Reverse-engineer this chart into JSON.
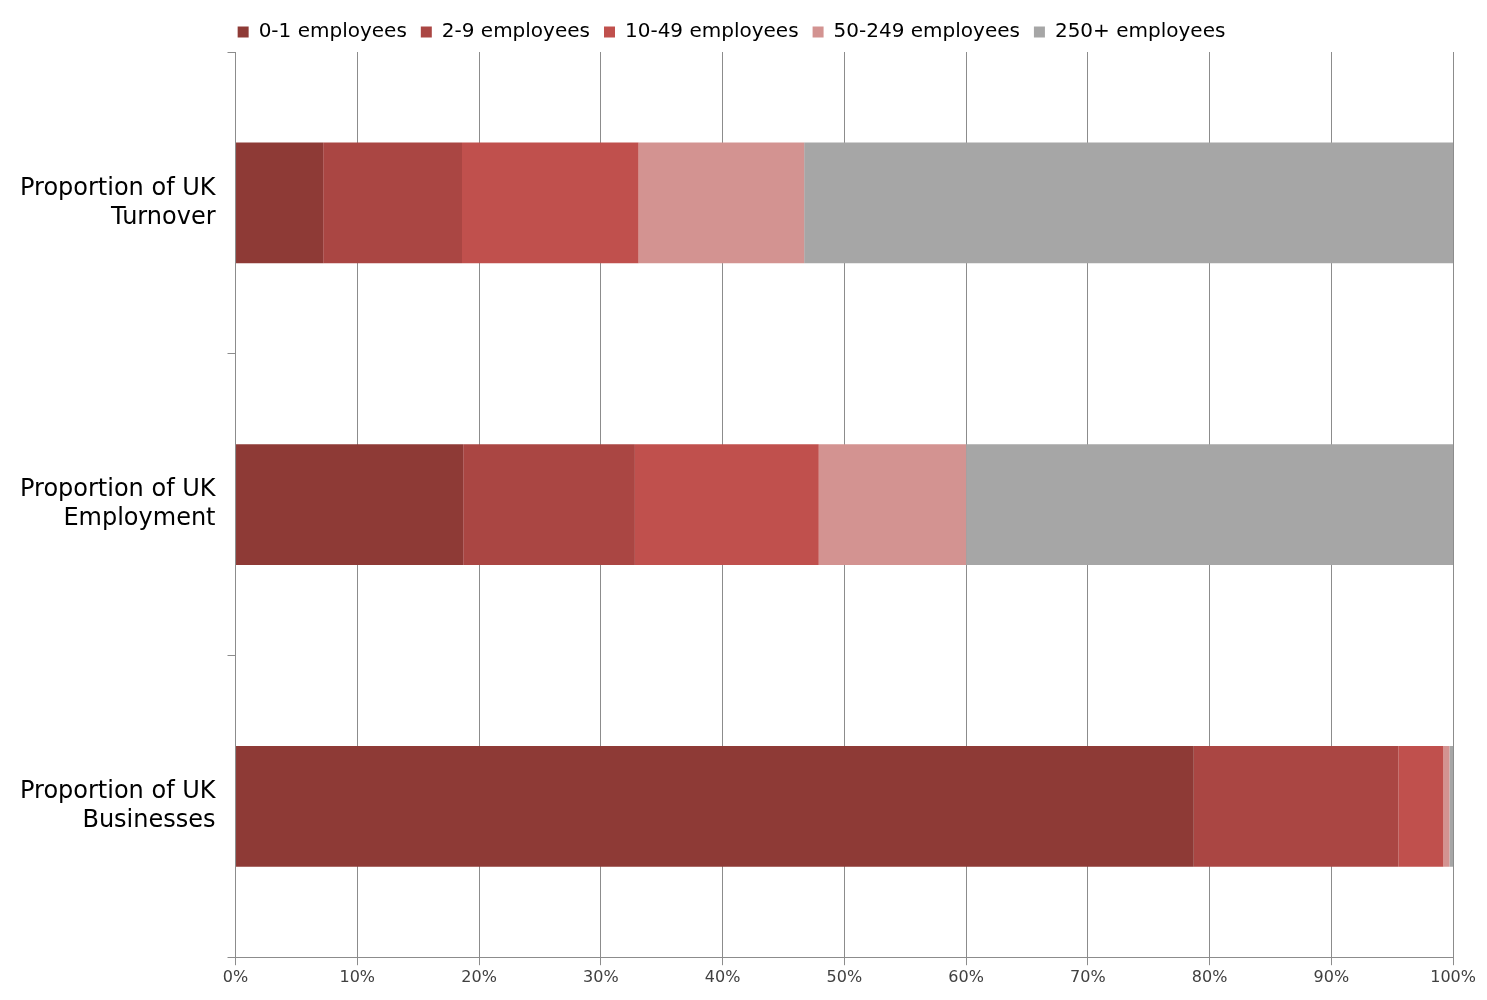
{
  "chart_data": {
    "type": "bar",
    "orientation": "horizontal",
    "stacked": true,
    "categories": [
      "Proportion of UK Turnover",
      "Proportion of UK Employment",
      "Proportion of UK Businesses"
    ],
    "series": [
      {
        "name": "0-1 employees",
        "color": "#8e3a36",
        "values": [
          7.2,
          18.7,
          78.7
        ]
      },
      {
        "name": "2-9 employees",
        "color": "#aa4643",
        "values": [
          11.4,
          14.1,
          16.8
        ]
      },
      {
        "name": "10-49 employees",
        "color": "#c0504d",
        "values": [
          14.5,
          15.1,
          3.7
        ]
      },
      {
        "name": "50-249 employees",
        "color": "#d39391",
        "values": [
          13.6,
          12.1,
          0.5
        ]
      },
      {
        "name": "250+ employees",
        "color": "#a6a6a6",
        "values": [
          53.3,
          40.0,
          0.3
        ]
      }
    ],
    "xlim": [
      0,
      100
    ],
    "xticks": [
      {
        "value": 0,
        "label": "0%"
      },
      {
        "value": 10,
        "label": "10%"
      },
      {
        "value": 20,
        "label": "20%"
      },
      {
        "value": 30,
        "label": "30%"
      },
      {
        "value": 40,
        "label": "40%"
      },
      {
        "value": 50,
        "label": "50%"
      },
      {
        "value": 60,
        "label": "60%"
      },
      {
        "value": 70,
        "label": "70%"
      },
      {
        "value": 80,
        "label": "80%"
      },
      {
        "value": 90,
        "label": "90%"
      },
      {
        "value": 100,
        "label": "100%"
      }
    ],
    "grid": "x",
    "legend": "top"
  }
}
